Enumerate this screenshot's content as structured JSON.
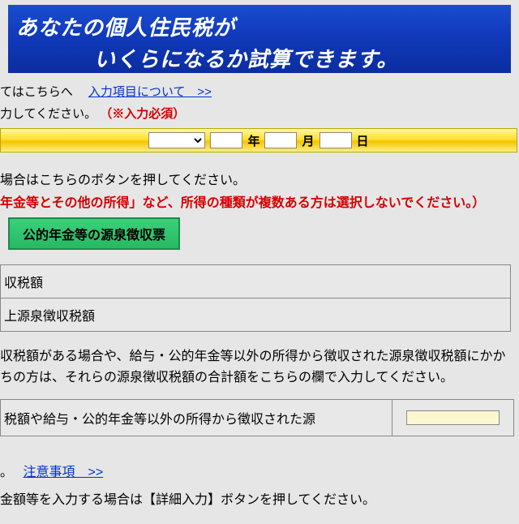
{
  "banner": {
    "line1": "あなたの個人住民税が",
    "line2": "いくらになるか試算できます。"
  },
  "topLinks": {
    "prefix": "てはこちらへ　",
    "link": "入力項目について　>>"
  },
  "instruction": {
    "prefix": "力してください。",
    "required": "（※入力必須）"
  },
  "dateBar": {
    "yearLabel": "年",
    "monthLabel": "月",
    "dayLabel": "日"
  },
  "section1": {
    "text1": "場合はこちらのボタンを押してください。",
    "text2": "年金等とその他の所得」など、所得の種類が複数ある方は選択しないでください。）",
    "buttonLabel": "公的年金等の源泉徴収票"
  },
  "table1": {
    "row1": "収税額",
    "row2": "上源泉徴収税額"
  },
  "para1": {
    "line1": "収税額がある場合や、給与・公的年金等以外の所得から徴収された源泉徴収税額にかか",
    "line2": "ちの方は、それらの源泉徴収税額の合計額をこちらの欄で入力してください。"
  },
  "table2": {
    "label": "税額や給与・公的年金等以外の所得から徴収された源"
  },
  "bottom": {
    "prefix": "。　",
    "link": "注意事項　>>",
    "text": "金額等を入力する場合は【詳細入力】ボタンを押してください。"
  },
  "colors": {
    "bannerBg": "#1038b8",
    "linkBlue": "#0033cc",
    "requiredRed": "#d60000",
    "goldBar": "#ffe030",
    "greenBtn": "#2ecc71",
    "inputYellow": "#fdf7d0",
    "pageBg": "#e6e6e6"
  }
}
